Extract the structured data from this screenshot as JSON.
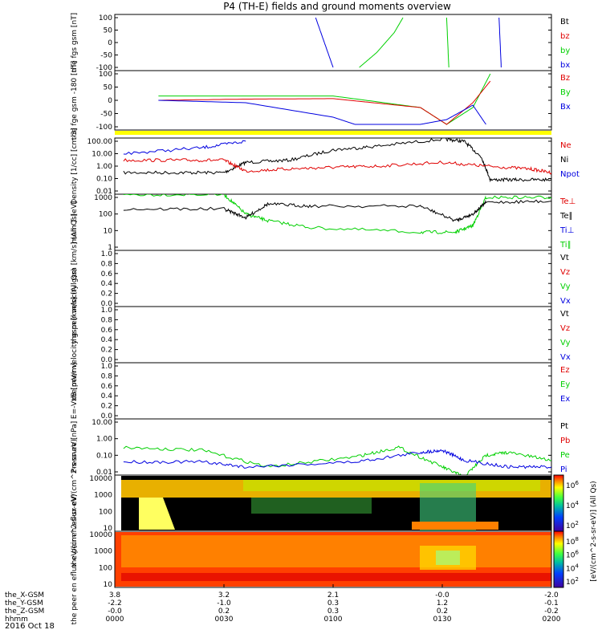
{
  "title": "P4 (TH-E) fields and ground moments overview",
  "date_label": "2016 Oct 18",
  "orbit_rows": [
    {
      "label": "the_X-GSM",
      "values": [
        "3.8",
        "3.2",
        "2.1",
        "-0.0",
        "-2.0"
      ]
    },
    {
      "label": "the_Y-GSM",
      "values": [
        "-2.2",
        "-1.0",
        "0.3",
        "1.2",
        "-0.1"
      ]
    },
    {
      "label": "the_Z-GSM",
      "values": [
        "-0.0",
        "0.2",
        "0.3",
        "0.2",
        "-0.2"
      ]
    },
    {
      "label": "hhmm",
      "values": [
        "0000",
        "0030",
        "0100",
        "0130",
        "0200"
      ]
    }
  ],
  "colorbar": {
    "label": "[eV/(cm^2-s-sr-eV)] (All Qs)",
    "top_ticks": [
      "10^6",
      "10^4",
      "10^2"
    ],
    "bottom_ticks": [
      "10^8",
      "10^6",
      "10^4",
      "10^2"
    ]
  },
  "colors": {
    "black": "#000000",
    "red": "#e00000",
    "green": "#00d000",
    "blue": "#0000e0",
    "yellow": "#ffff00"
  },
  "chart_data": [
    {
      "type": "line",
      "id": "fgs",
      "ylabel": "the fgs gsm [nT]",
      "ylim": [
        -100,
        100
      ],
      "yticks": [
        "100",
        "50",
        "0",
        "-50",
        "-100"
      ],
      "legend": [
        "Bt",
        "bz",
        "by",
        "bx"
      ],
      "series": [
        {
          "name": "by",
          "x": [
            0.56,
            0.6,
            0.64,
            0.66
          ],
          "values": [
            -100,
            -40,
            40,
            100
          ]
        },
        {
          "name": "by",
          "x": [
            0.76,
            0.765
          ],
          "values": [
            100,
            -100
          ]
        },
        {
          "name": "bx",
          "x": [
            0.46,
            0.5
          ],
          "values": [
            100,
            -100
          ]
        },
        {
          "name": "bx",
          "x": [
            0.88,
            0.885
          ],
          "values": [
            100,
            -100
          ]
        }
      ]
    },
    {
      "type": "line",
      "id": "fge",
      "ylabel": "the fge gsm -180 [nT]",
      "ylim": [
        -120,
        100
      ],
      "yticks": [
        "100",
        "50",
        "0",
        "-50",
        "-100"
      ],
      "legend": [
        "Bz",
        "By",
        "Bx"
      ],
      "series": [
        {
          "name": "By",
          "x": [
            0.1,
            0.3,
            0.5,
            0.7,
            0.76,
            0.82,
            0.86
          ],
          "values": [
            8,
            8,
            8,
            -40,
            -110,
            -40,
            100
          ]
        },
        {
          "name": "Bz",
          "x": [
            0.1,
            0.3,
            0.5,
            0.7,
            0.76,
            0.82,
            0.86
          ],
          "values": [
            -10,
            -5,
            -3,
            -40,
            -110,
            -20,
            70
          ]
        },
        {
          "name": "Bx",
          "x": [
            0.1,
            0.3,
            0.5,
            0.55,
            0.7,
            0.76,
            0.82,
            0.85
          ],
          "values": [
            -10,
            -20,
            -80,
            -110,
            -110,
            -90,
            -30,
            -110
          ]
        }
      ]
    },
    {
      "type": "line",
      "id": "density",
      "ylabel": "Density [1/cc] [cm-3]",
      "ylim_log": [
        0.01,
        100
      ],
      "yticks": [
        "100.00",
        "10.00",
        "1.00",
        "0.10",
        "0.01"
      ],
      "legend": [
        "Ne",
        "Ni",
        "Npot"
      ],
      "series": [
        {
          "name": "Ni",
          "x": [
            0.02,
            0.15,
            0.25,
            0.3,
            0.4,
            0.5,
            0.6,
            0.75,
            0.8,
            0.84,
            0.86,
            0.92,
            1.0
          ],
          "values": [
            0.3,
            0.3,
            0.3,
            2,
            3,
            20,
            40,
            150,
            100,
            5,
            0.08,
            0.08,
            0.08
          ]
        },
        {
          "name": "Ne",
          "x": [
            0.02,
            0.15,
            0.25,
            0.3,
            0.4,
            0.5,
            0.6,
            0.75,
            0.85,
            0.95,
            1.0
          ],
          "values": [
            3,
            3,
            3,
            0.4,
            0.6,
            0.8,
            1,
            2,
            1,
            0.6,
            0.3
          ]
        },
        {
          "name": "Npot",
          "x": [
            0.02,
            0.2,
            0.3
          ],
          "values": [
            10,
            30,
            100
          ]
        }
      ]
    },
    {
      "type": "line",
      "id": "mom_temp",
      "ylabel": "mom T [eV]",
      "ylim_log": [
        1,
        1000
      ],
      "yticks": [
        "1000",
        "100",
        "10",
        "1"
      ],
      "legend": [
        "Te⊥",
        "Te∥",
        "Ti⊥",
        "Ti∥"
      ],
      "series": [
        {
          "name": "Ti∥",
          "x": [
            0.02,
            0.25,
            0.3,
            0.35,
            0.45,
            0.7,
            0.78,
            0.82,
            0.85,
            1.0
          ],
          "values": [
            1500,
            1500,
            100,
            40,
            15,
            8,
            8,
            20,
            1000,
            1000
          ]
        },
        {
          "name": "Te∥",
          "x": [
            0.02,
            0.25,
            0.3,
            0.35,
            0.45,
            0.7,
            0.78,
            0.82,
            0.85,
            1.0
          ],
          "values": [
            200,
            200,
            60,
            400,
            300,
            300,
            40,
            100,
            500,
            600
          ]
        }
      ]
    },
    {
      "type": "line",
      "id": "peir_velocity",
      "ylabel": "the peir velocity gsm [km/s] (All Qs)",
      "ylim": [
        0,
        1
      ],
      "yticks": [
        "1.0",
        "0.8",
        "0.6",
        "0.4",
        "0.2",
        "0.0"
      ],
      "legend": [
        "Vt",
        "Vz",
        "Vy",
        "Vx"
      ],
      "series": []
    },
    {
      "type": "line",
      "id": "peer_velocity",
      "ylabel": "the peer velocity gsm [km/s] (All Qs)",
      "ylim": [
        0,
        1
      ],
      "yticks": [
        "1.0",
        "0.8",
        "0.6",
        "0.4",
        "0.2",
        "0.0"
      ],
      "legend": [
        "Vt",
        "Vz",
        "Vy",
        "Vx"
      ],
      "series": []
    },
    {
      "type": "line",
      "id": "e_vxb",
      "ylabel": "E=-VxB [mV/m]",
      "ylim": [
        0,
        1
      ],
      "yticks": [
        "1.0",
        "0.8",
        "0.6",
        "0.4",
        "0.2",
        "0.0"
      ],
      "legend": [
        "Ez",
        "Ey",
        "Ex"
      ],
      "series": []
    },
    {
      "type": "line",
      "id": "pressure",
      "ylabel": "Pressure [nPa]",
      "ylim_log": [
        0.01,
        10
      ],
      "yticks": [
        "10.00",
        "1.00",
        "0.10",
        "0.01"
      ],
      "legend": [
        "Pt",
        "Pb",
        "Pe",
        "Pi"
      ],
      "series": [
        {
          "name": "Pe",
          "x": [
            0.02,
            0.2,
            0.35,
            0.55,
            0.65,
            0.75,
            0.8,
            0.85,
            0.9,
            1.0
          ],
          "values": [
            0.3,
            0.2,
            0.02,
            0.08,
            0.3,
            0.02,
            0.005,
            0.1,
            0.15,
            0.05
          ]
        },
        {
          "name": "Pi",
          "x": [
            0.02,
            0.2,
            0.3,
            0.55,
            0.7,
            0.75,
            0.8,
            0.9,
            1.0
          ],
          "values": [
            0.04,
            0.04,
            0.02,
            0.04,
            0.15,
            0.2,
            0.05,
            0.02,
            0.02
          ]
        }
      ]
    },
    {
      "type": "heatmap",
      "id": "peir_eflux",
      "ylabel": "the peir en eflux eV/(cm^2-s-sr-eV)",
      "yticks": [
        "10000",
        "1000",
        "100",
        "10"
      ]
    },
    {
      "type": "heatmap",
      "id": "peer_eflux",
      "ylabel": "the peer en eflux eV/(cm^2-s-sr-eV)",
      "yticks": [
        "10000",
        "1000",
        "100",
        "10"
      ]
    }
  ]
}
